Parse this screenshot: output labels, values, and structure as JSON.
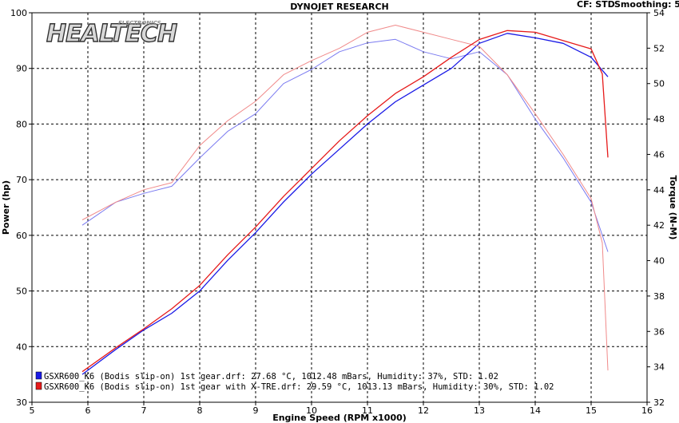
{
  "header": {
    "title": "DYNOJET RESEARCH",
    "cf_text": "CF: STD",
    "smoothing_text": "Smoothing: 5"
  },
  "logo": {
    "text": "HEALTECH",
    "subtext": "ELECTRONICS"
  },
  "colors": {
    "blue": "#1a1ae6",
    "red": "#e61a1a",
    "blue_light": "#7a7af0",
    "red_light": "#f08a8a"
  },
  "chart_data": {
    "type": "line",
    "xlabel": "Engine Speed (RPM x1000)",
    "ylabel_left": "Power (hp)",
    "ylabel_right": "Torque (N-M)",
    "xlim": [
      5,
      16
    ],
    "ylim_left": [
      30,
      100
    ],
    "ylim_right": [
      32,
      54
    ],
    "x_ticks": [
      5,
      6,
      7,
      8,
      9,
      10,
      11,
      12,
      13,
      14,
      15,
      16
    ],
    "y_left_ticks": [
      30,
      40,
      50,
      60,
      70,
      80,
      90,
      100
    ],
    "y_right_ticks": [
      32,
      34,
      36,
      38,
      40,
      42,
      44,
      46,
      48,
      50,
      52,
      54
    ],
    "grid": true,
    "legend_position": "bottom-left",
    "series": [
      {
        "name": "GSXR600_K6 (Bodis slip-on) 1st gear.drf: 27.68 °C, 1012.48 mBars, Humidity: 37%, STD: 1.02",
        "color": "blue",
        "power": {
          "x": [
            5.9,
            6.5,
            7.0,
            7.5,
            8.0,
            8.5,
            9.0,
            9.5,
            10.0,
            10.5,
            11.0,
            11.5,
            12.0,
            12.5,
            13.0,
            13.5,
            14.0,
            14.5,
            15.0,
            15.3
          ],
          "y": [
            35.0,
            39.5,
            43.0,
            46.0,
            50.0,
            55.5,
            60.5,
            66.0,
            71.0,
            75.5,
            80.0,
            84.0,
            87.0,
            90.0,
            94.5,
            96.3,
            95.5,
            94.5,
            92.0,
            88.5
          ]
        },
        "torque": {
          "x": [
            5.9,
            6.5,
            7.0,
            7.5,
            8.0,
            8.5,
            9.0,
            9.5,
            10.0,
            10.5,
            11.0,
            11.5,
            12.0,
            12.5,
            13.0,
            13.5,
            14.0,
            14.5,
            15.0,
            15.3
          ],
          "y": [
            42.0,
            43.3,
            43.8,
            44.2,
            45.8,
            47.3,
            48.3,
            50.0,
            50.8,
            51.8,
            52.3,
            52.5,
            51.8,
            51.4,
            51.8,
            50.5,
            48.0,
            45.8,
            43.3,
            40.5
          ]
        }
      },
      {
        "name": "GSXR600_K6 (Bodis slip-on) 1st gear with X-TRE.drf: 29.59 °C, 1013.13 mBars, Humidity: 30%, STD: 1.02",
        "color": "red",
        "power": {
          "x": [
            5.9,
            6.5,
            7.0,
            7.5,
            8.0,
            8.5,
            9.0,
            9.5,
            10.0,
            10.5,
            11.0,
            11.5,
            12.0,
            12.5,
            13.0,
            13.5,
            14.0,
            14.5,
            15.0,
            15.2,
            15.3
          ],
          "y": [
            35.5,
            39.8,
            43.2,
            46.8,
            51.0,
            56.5,
            61.5,
            67.0,
            72.0,
            77.0,
            81.5,
            85.5,
            88.5,
            92.0,
            95.2,
            96.8,
            96.5,
            95.0,
            93.5,
            89.0,
            74.0
          ]
        },
        "torque": {
          "x": [
            5.9,
            6.5,
            7.0,
            7.5,
            8.0,
            8.5,
            9.0,
            9.5,
            10.0,
            10.5,
            11.0,
            11.5,
            12.0,
            12.5,
            13.0,
            13.5,
            14.0,
            14.5,
            15.0,
            15.2,
            15.3
          ],
          "y": [
            42.3,
            43.3,
            44.0,
            44.4,
            46.5,
            47.9,
            49.0,
            50.5,
            51.3,
            52.0,
            52.9,
            53.3,
            52.9,
            52.5,
            52.1,
            50.5,
            48.3,
            46.0,
            43.5,
            41.0,
            33.8
          ]
        }
      }
    ]
  }
}
